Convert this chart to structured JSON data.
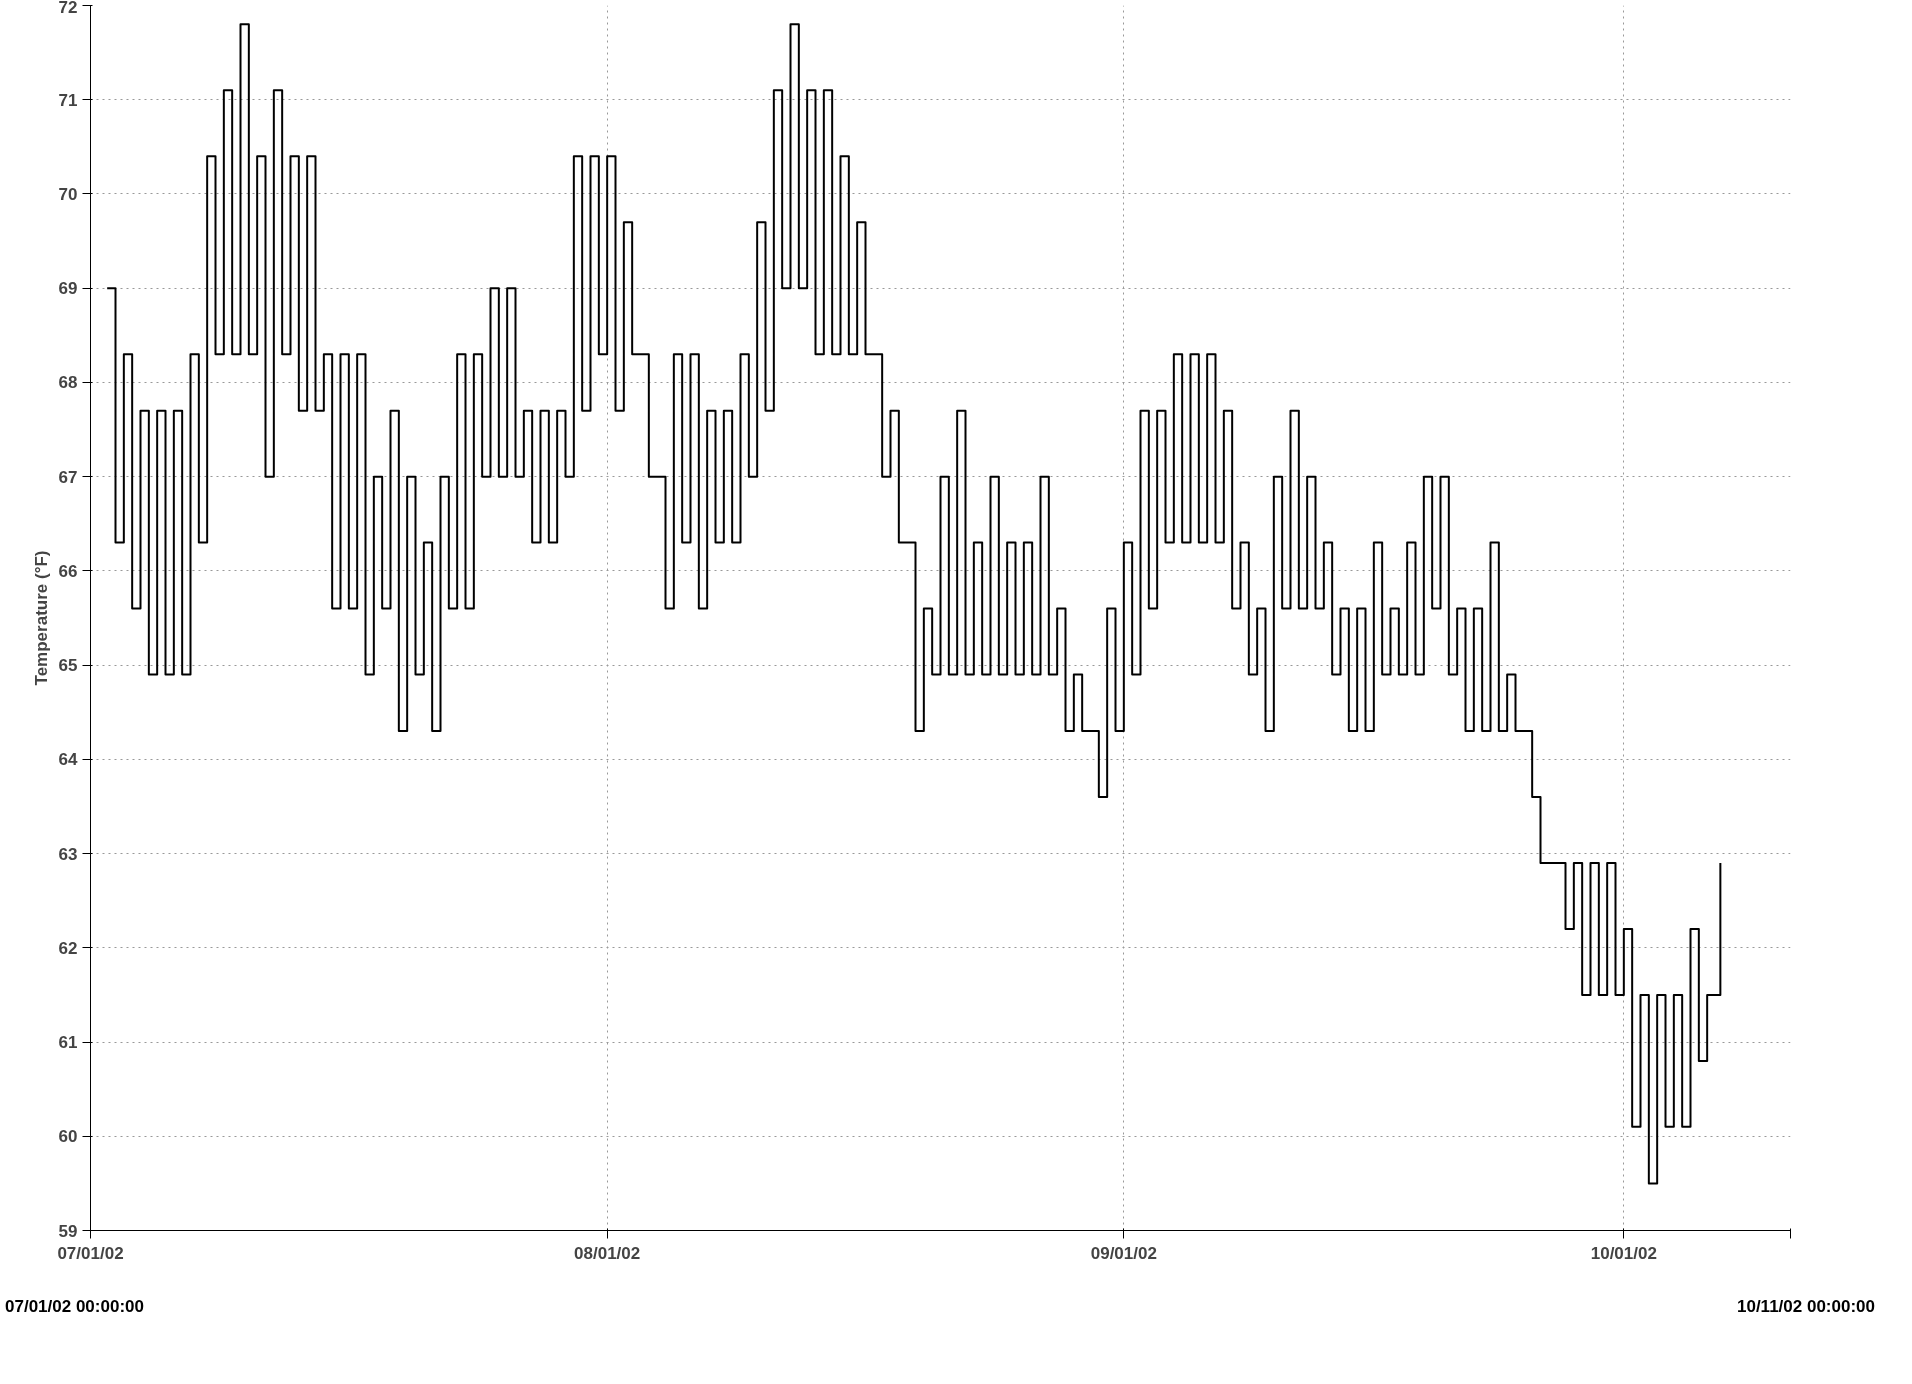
{
  "chart_data": {
    "type": "step",
    "ylabel": "Temperature (°F)",
    "annotations": [
      "07/01/02 00:00:00",
      "10/11/02 00:00:00"
    ],
    "xlim": [
      "2002-07-01",
      "2002-10-11"
    ],
    "ylim": [
      59,
      72
    ],
    "yticks": [
      59,
      60,
      61,
      62,
      63,
      64,
      65,
      66,
      67,
      68,
      69,
      70,
      71,
      72
    ],
    "xticks": [
      {
        "value": "2002-07-01",
        "label": "07/01/02"
      },
      {
        "value": "2002-08-01",
        "label": "08/01/02"
      },
      {
        "value": "2002-09-01",
        "label": "09/01/02"
      },
      {
        "value": "2002-10-01",
        "label": "10/01/02"
      },
      {
        "value": "2002-10-11",
        "label": null
      }
    ],
    "grid": true,
    "line_style": "solid",
    "marker": "none",
    "series": [
      {
        "color": "#000000",
        "x": [
          "2002-07-02T00:00",
          "2002-07-02T12:00",
          "2002-07-03T00:00",
          "2002-07-03T12:00",
          "2002-07-04T00:00",
          "2002-07-04T12:00",
          "2002-07-05T00:00",
          "2002-07-05T12:00",
          "2002-07-06T00:00",
          "2002-07-06T12:00",
          "2002-07-07T00:00",
          "2002-07-07T12:00",
          "2002-07-08T00:00",
          "2002-07-08T12:00",
          "2002-07-09T00:00",
          "2002-07-09T12:00",
          "2002-07-10T00:00",
          "2002-07-10T12:00",
          "2002-07-11T00:00",
          "2002-07-11T12:00",
          "2002-07-12T00:00",
          "2002-07-12T12:00",
          "2002-07-13T00:00",
          "2002-07-13T12:00",
          "2002-07-14T00:00",
          "2002-07-14T12:00",
          "2002-07-15T00:00",
          "2002-07-15T12:00",
          "2002-07-16T00:00",
          "2002-07-16T12:00",
          "2002-07-17T00:00",
          "2002-07-17T12:00",
          "2002-07-18T00:00",
          "2002-07-18T12:00",
          "2002-07-19T00:00",
          "2002-07-19T12:00",
          "2002-07-20T00:00",
          "2002-07-20T12:00",
          "2002-07-21T00:00",
          "2002-07-21T12:00",
          "2002-07-22T00:00",
          "2002-07-22T12:00",
          "2002-07-23T00:00",
          "2002-07-23T12:00",
          "2002-07-24T00:00",
          "2002-07-24T12:00",
          "2002-07-25T00:00",
          "2002-07-25T12:00",
          "2002-07-26T00:00",
          "2002-07-26T12:00",
          "2002-07-27T00:00",
          "2002-07-27T12:00",
          "2002-07-28T00:00",
          "2002-07-28T12:00",
          "2002-07-29T00:00",
          "2002-07-29T12:00",
          "2002-07-30T00:00",
          "2002-07-30T12:00",
          "2002-07-31T00:00",
          "2002-07-31T12:00",
          "2002-08-01T00:00",
          "2002-08-01T12:00",
          "2002-08-02T00:00",
          "2002-08-02T12:00",
          "2002-08-03T00:00",
          "2002-08-03T12:00",
          "2002-08-04T00:00",
          "2002-08-04T12:00",
          "2002-08-05T00:00",
          "2002-08-05T12:00",
          "2002-08-06T00:00",
          "2002-08-06T12:00",
          "2002-08-07T00:00",
          "2002-08-07T12:00",
          "2002-08-08T00:00",
          "2002-08-08T12:00",
          "2002-08-09T00:00",
          "2002-08-09T12:00",
          "2002-08-10T00:00",
          "2002-08-10T12:00",
          "2002-08-11T00:00",
          "2002-08-11T12:00",
          "2002-08-12T00:00",
          "2002-08-12T12:00",
          "2002-08-13T00:00",
          "2002-08-13T12:00",
          "2002-08-14T00:00",
          "2002-08-14T12:00",
          "2002-08-15T00:00",
          "2002-08-15T12:00",
          "2002-08-16T00:00",
          "2002-08-16T12:00",
          "2002-08-17T00:00",
          "2002-08-17T12:00",
          "2002-08-18T00:00",
          "2002-08-18T12:00",
          "2002-08-19T00:00",
          "2002-08-19T12:00",
          "2002-08-20T00:00",
          "2002-08-20T12:00",
          "2002-08-21T00:00",
          "2002-08-21T12:00",
          "2002-08-22T00:00",
          "2002-08-22T12:00",
          "2002-08-23T00:00",
          "2002-08-23T12:00",
          "2002-08-24T00:00",
          "2002-08-24T12:00",
          "2002-08-25T00:00",
          "2002-08-25T12:00",
          "2002-08-26T00:00",
          "2002-08-26T12:00",
          "2002-08-27T00:00",
          "2002-08-27T12:00",
          "2002-08-28T00:00",
          "2002-08-28T12:00",
          "2002-08-29T00:00",
          "2002-08-29T12:00",
          "2002-08-30T00:00",
          "2002-08-30T12:00",
          "2002-08-31T00:00",
          "2002-08-31T12:00",
          "2002-09-01T00:00",
          "2002-09-01T12:00",
          "2002-09-02T00:00",
          "2002-09-02T12:00",
          "2002-09-03T00:00",
          "2002-09-03T12:00",
          "2002-09-04T00:00",
          "2002-09-04T12:00",
          "2002-09-05T00:00",
          "2002-09-05T12:00",
          "2002-09-06T00:00",
          "2002-09-06T12:00",
          "2002-09-07T00:00",
          "2002-09-07T12:00",
          "2002-09-08T00:00",
          "2002-09-08T12:00",
          "2002-09-09T00:00",
          "2002-09-09T12:00",
          "2002-09-10T00:00",
          "2002-09-10T12:00",
          "2002-09-11T00:00",
          "2002-09-11T12:00",
          "2002-09-12T00:00",
          "2002-09-12T12:00",
          "2002-09-13T00:00",
          "2002-09-13T12:00",
          "2002-09-14T00:00",
          "2002-09-14T12:00",
          "2002-09-15T00:00",
          "2002-09-15T12:00",
          "2002-09-16T00:00",
          "2002-09-16T12:00",
          "2002-09-17T00:00",
          "2002-09-17T12:00",
          "2002-09-18T00:00",
          "2002-09-18T12:00",
          "2002-09-19T00:00",
          "2002-09-19T12:00",
          "2002-09-20T00:00",
          "2002-09-20T12:00",
          "2002-09-21T00:00",
          "2002-09-21T12:00",
          "2002-09-22T00:00",
          "2002-09-22T12:00",
          "2002-09-23T00:00",
          "2002-09-23T12:00",
          "2002-09-24T00:00",
          "2002-09-24T12:00",
          "2002-09-25T00:00",
          "2002-09-25T12:00",
          "2002-09-26T00:00",
          "2002-09-26T12:00",
          "2002-09-27T00:00",
          "2002-09-27T12:00",
          "2002-09-28T00:00",
          "2002-09-28T12:00",
          "2002-09-29T00:00",
          "2002-09-29T12:00",
          "2002-09-30T00:00",
          "2002-09-30T12:00",
          "2002-10-01T00:00",
          "2002-10-01T12:00",
          "2002-10-02T00:00",
          "2002-10-02T12:00",
          "2002-10-03T00:00",
          "2002-10-03T12:00",
          "2002-10-04T00:00",
          "2002-10-04T12:00",
          "2002-10-05T00:00",
          "2002-10-05T12:00",
          "2002-10-06T00:00",
          "2002-10-06T19:00"
        ],
        "values": [
          69.0,
          66.3,
          68.3,
          65.6,
          67.7,
          64.9,
          67.7,
          64.9,
          67.7,
          64.9,
          68.3,
          66.3,
          70.4,
          68.3,
          71.1,
          68.3,
          71.8,
          68.3,
          70.4,
          67.0,
          71.1,
          68.3,
          70.4,
          67.7,
          70.4,
          67.7,
          68.3,
          65.6,
          68.3,
          65.6,
          68.3,
          64.9,
          67.0,
          65.6,
          67.7,
          64.3,
          67.0,
          64.9,
          66.3,
          64.3,
          67.0,
          65.6,
          68.3,
          65.6,
          68.3,
          67.0,
          69.0,
          67.0,
          69.0,
          67.0,
          67.7,
          66.3,
          67.7,
          66.3,
          67.7,
          67.0,
          70.4,
          67.7,
          70.4,
          68.3,
          70.4,
          67.7,
          69.7,
          68.3,
          68.3,
          67.0,
          67.0,
          65.6,
          68.3,
          66.3,
          68.3,
          65.6,
          67.7,
          66.3,
          67.7,
          66.3,
          68.3,
          67.0,
          69.7,
          67.7,
          71.1,
          69.0,
          71.8,
          69.0,
          71.1,
          68.3,
          71.1,
          68.3,
          70.4,
          68.3,
          69.7,
          68.3,
          68.3,
          67.0,
          67.7,
          66.3,
          66.3,
          64.3,
          65.6,
          64.9,
          67.0,
          64.9,
          67.7,
          64.9,
          66.3,
          64.9,
          67.0,
          64.9,
          66.3,
          64.9,
          66.3,
          64.9,
          67.0,
          64.9,
          65.6,
          64.3,
          64.9,
          64.3,
          64.3,
          63.6,
          65.6,
          64.3,
          66.3,
          64.9,
          67.7,
          65.6,
          67.7,
          66.3,
          68.3,
          66.3,
          68.3,
          66.3,
          68.3,
          66.3,
          67.7,
          65.6,
          66.3,
          64.9,
          65.6,
          64.3,
          67.0,
          65.6,
          67.7,
          65.6,
          67.0,
          65.6,
          66.3,
          64.9,
          65.6,
          64.3,
          65.6,
          64.3,
          66.3,
          64.9,
          65.6,
          64.9,
          66.3,
          64.9,
          67.0,
          65.6,
          67.0,
          64.9,
          65.6,
          64.3,
          65.6,
          64.3,
          66.3,
          64.3,
          64.9,
          64.3,
          64.3,
          63.6,
          62.9,
          62.9,
          62.9,
          62.2,
          62.9,
          61.5,
          62.9,
          61.5,
          62.9,
          61.5,
          62.2,
          60.1,
          61.5,
          59.5,
          61.5,
          60.1,
          61.5,
          60.1,
          62.2,
          60.8,
          61.5,
          62.9
        ]
      }
    ]
  }
}
